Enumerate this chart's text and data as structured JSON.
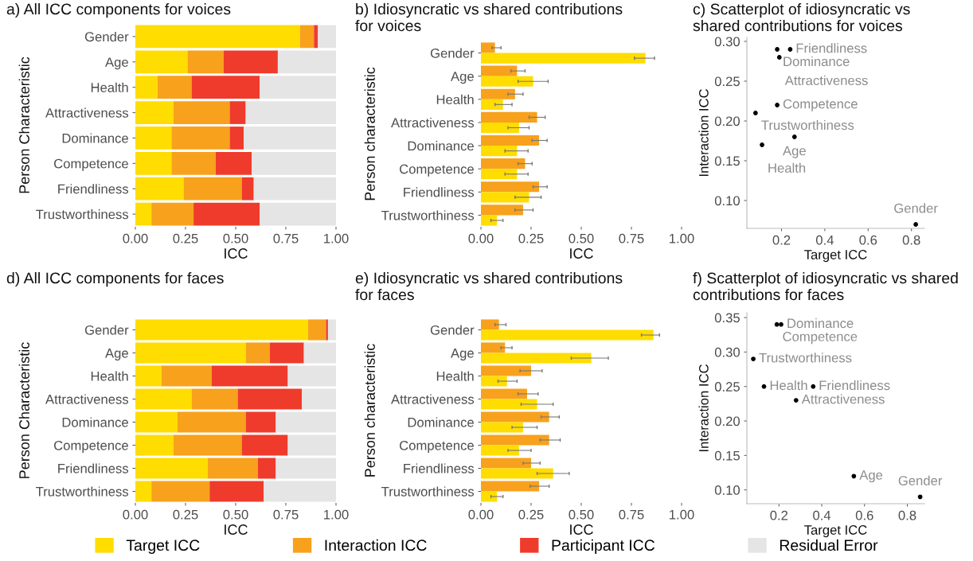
{
  "chart_data": [
    {
      "type": "bar",
      "orientation": "horizontal",
      "stacked": true,
      "title": "a) All ICC components for voices",
      "xlabel": "ICC",
      "ylabel": "Person Characteristic",
      "categories": [
        "Gender",
        "Age",
        "Health",
        "Attractiveness",
        "Dominance",
        "Competence",
        "Friendliness",
        "Trustworthiness"
      ],
      "series": [
        {
          "color": "#ffdd00",
          "values": [
            0.82,
            0.26,
            0.11,
            0.19,
            0.18,
            0.18,
            0.24,
            0.08
          ]
        },
        {
          "color": "#f8a11c",
          "values": [
            0.07,
            0.18,
            0.17,
            0.28,
            0.29,
            0.22,
            0.29,
            0.21
          ]
        },
        {
          "color": "#ef3b2c",
          "values": [
            0.02,
            0.27,
            0.34,
            0.08,
            0.07,
            0.18,
            0.06,
            0.33
          ]
        },
        {
          "color": "#e5e5e5",
          "values": [
            0.09,
            0.29,
            0.38,
            0.45,
            0.46,
            0.42,
            0.41,
            0.38
          ]
        }
      ],
      "xlim": [
        0,
        1
      ],
      "xticks": [
        {
          "value": 0,
          "label": "0.00"
        },
        {
          "value": 0.25,
          "label": "0.25"
        },
        {
          "value": 0.5,
          "label": "0.50"
        },
        {
          "value": 0.75,
          "label": "0.75"
        },
        {
          "value": 1,
          "label": "1.00"
        }
      ],
      "grid": false,
      "legend": false
    },
    {
      "type": "bar",
      "orientation": "horizontal",
      "title": "b) Idiosyncratic vs shared contributions\nfor voices",
      "xlabel": "ICC",
      "ylabel": "Person characteristic",
      "categories": [
        "Gender",
        "Age",
        "Health",
        "Attractiveness",
        "Dominance",
        "Competence",
        "Friendliness",
        "Trustworthiness"
      ],
      "series": [
        {
          "color": "#f8a11c",
          "values": [
            0.07,
            0.18,
            0.17,
            0.28,
            0.29,
            0.22,
            0.29,
            0.21
          ],
          "errors": [
            [
              0.055,
              0.1
            ],
            [
              0.15,
              0.22
            ],
            [
              0.135,
              0.21
            ],
            [
              0.24,
              0.32
            ],
            [
              0.255,
              0.33
            ],
            [
              0.185,
              0.255
            ],
            [
              0.26,
              0.33
            ],
            [
              0.17,
              0.26
            ]
          ]
        },
        {
          "color": "#ffdd00",
          "values": [
            0.82,
            0.26,
            0.11,
            0.19,
            0.18,
            0.18,
            0.24,
            0.08
          ],
          "errors": [
            [
              0.765,
              0.865
            ],
            [
              0.185,
              0.335
            ],
            [
              0.07,
              0.155
            ],
            [
              0.135,
              0.24
            ],
            [
              0.12,
              0.235
            ],
            [
              0.12,
              0.235
            ],
            [
              0.17,
              0.3
            ],
            [
              0.05,
              0.11
            ]
          ]
        }
      ],
      "xlim": [
        0,
        1
      ],
      "xticks": [
        {
          "value": 0,
          "label": "0.00"
        },
        {
          "value": 0.25,
          "label": "0.25"
        },
        {
          "value": 0.5,
          "label": "0.50"
        },
        {
          "value": 0.75,
          "label": "0.75"
        },
        {
          "value": 1,
          "label": "1.00"
        }
      ],
      "grid": false,
      "legend": false
    },
    {
      "type": "scatter",
      "title": "c) Scatterplot of idiosyncratic vs\nshared contributions for voices",
      "xlabel": "Target ICC",
      "ylabel": "Interaction ICC",
      "marker": "circle",
      "series": [
        {
          "color": "#000000",
          "x": [
            0.82,
            0.26,
            0.11,
            0.19,
            0.18,
            0.18,
            0.24,
            0.08
          ],
          "values": [
            0.07,
            0.18,
            0.17,
            0.28,
            0.29,
            0.22,
            0.29,
            0.21
          ]
        }
      ],
      "annotations": [
        {
          "text": "Gender",
          "x": 0.82,
          "y": 0.07
        },
        {
          "text": "Age",
          "x": 0.26,
          "y": 0.18
        },
        {
          "text": "Health",
          "x": 0.11,
          "y": 0.17
        },
        {
          "text": "Attractiveness",
          "x": 0.19,
          "y": 0.28
        },
        {
          "text": "Dominance",
          "x": 0.18,
          "y": 0.29
        },
        {
          "text": "Competence",
          "x": 0.18,
          "y": 0.22
        },
        {
          "text": "Friendliness",
          "x": 0.24,
          "y": 0.29
        },
        {
          "text": "Trustworthiness",
          "x": 0.08,
          "y": 0.21
        }
      ],
      "xlim": [
        0.04,
        0.86
      ],
      "ylim": [
        0.065,
        0.305
      ],
      "xticks": [
        0.2,
        0.4,
        0.6,
        0.8
      ],
      "yticks": [
        {
          "value": 0.1,
          "label": "0.10"
        },
        {
          "value": 0.15,
          "label": "0.15"
        },
        {
          "value": 0.2,
          "label": "0.20"
        },
        {
          "value": 0.25,
          "label": "0.25"
        },
        {
          "value": 0.3,
          "label": "0.30"
        }
      ],
      "grid": false,
      "legend": false
    },
    {
      "type": "bar",
      "orientation": "horizontal",
      "stacked": true,
      "title": "d) All ICC components for faces",
      "xlabel": "ICC",
      "ylabel": "Person Characteristic",
      "categories": [
        "Gender",
        "Age",
        "Health",
        "Attractiveness",
        "Dominance",
        "Competence",
        "Friendliness",
        "Trustworthiness"
      ],
      "series": [
        {
          "name": "Target ICC",
          "color": "#ffdd00",
          "values": [
            0.86,
            0.55,
            0.13,
            0.28,
            0.21,
            0.19,
            0.36,
            0.08
          ]
        },
        {
          "name": "Interaction ICC",
          "color": "#f8a11c",
          "values": [
            0.09,
            0.12,
            0.25,
            0.23,
            0.34,
            0.34,
            0.25,
            0.29
          ]
        },
        {
          "name": "Participant ICC",
          "color": "#ef3b2c",
          "values": [
            0.01,
            0.17,
            0.38,
            0.32,
            0.15,
            0.23,
            0.09,
            0.27
          ]
        },
        {
          "name": "Residual Error",
          "color": "#e5e5e5",
          "values": [
            0.04,
            0.16,
            0.24,
            0.17,
            0.3,
            0.24,
            0.3,
            0.36
          ]
        }
      ],
      "xlim": [
        0,
        1
      ],
      "xticks": [
        {
          "value": 0,
          "label": "0.00"
        },
        {
          "value": 0.25,
          "label": "0.25"
        },
        {
          "value": 0.5,
          "label": "0.50"
        },
        {
          "value": 0.75,
          "label": "0.75"
        },
        {
          "value": 1,
          "label": "1.00"
        }
      ],
      "grid": false,
      "legend": "bottom"
    },
    {
      "type": "bar",
      "orientation": "horizontal",
      "title": "e) Idiosyncratic vs shared contributions\nfor faces",
      "xlabel": "ICC",
      "ylabel": "Person characteristic",
      "categories": [
        "Gender",
        "Age",
        "Health",
        "Attractiveness",
        "Dominance",
        "Competence",
        "Friendliness",
        "Trustworthiness"
      ],
      "series": [
        {
          "color": "#f8a11c",
          "values": [
            0.09,
            0.12,
            0.25,
            0.23,
            0.34,
            0.34,
            0.25,
            0.29
          ],
          "errors": [
            [
              0.07,
              0.125
            ],
            [
              0.1,
              0.155
            ],
            [
              0.195,
              0.305
            ],
            [
              0.185,
              0.285
            ],
            [
              0.3,
              0.39
            ],
            [
              0.295,
              0.395
            ],
            [
              0.21,
              0.295
            ],
            [
              0.245,
              0.34
            ]
          ]
        },
        {
          "color": "#ffdd00",
          "values": [
            0.86,
            0.55,
            0.13,
            0.28,
            0.21,
            0.19,
            0.36,
            0.08
          ],
          "errors": [
            [
              0.8,
              0.89
            ],
            [
              0.45,
              0.635
            ],
            [
              0.085,
              0.18
            ],
            [
              0.2,
              0.36
            ],
            [
              0.155,
              0.28
            ],
            [
              0.135,
              0.25
            ],
            [
              0.28,
              0.44
            ],
            [
              0.05,
              0.11
            ]
          ]
        }
      ],
      "xlim": [
        0,
        1
      ],
      "xticks": [
        {
          "value": 0,
          "label": "0.00"
        },
        {
          "value": 0.25,
          "label": "0.25"
        },
        {
          "value": 0.5,
          "label": "0.50"
        },
        {
          "value": 0.75,
          "label": "0.75"
        },
        {
          "value": 1,
          "label": "1.00"
        }
      ],
      "grid": false,
      "legend": false
    },
    {
      "type": "scatter",
      "title": "f) Scatterplot of idiosyncratic vs shared\ncontributions for faces",
      "xlabel": "Target ICC",
      "ylabel": "Interaction ICC",
      "marker": "circle",
      "series": [
        {
          "color": "#000000",
          "x": [
            0.86,
            0.55,
            0.13,
            0.28,
            0.21,
            0.19,
            0.36,
            0.08
          ],
          "values": [
            0.09,
            0.12,
            0.25,
            0.23,
            0.34,
            0.34,
            0.25,
            0.29
          ]
        }
      ],
      "annotations": [
        {
          "text": "Gender",
          "x": 0.86,
          "y": 0.09
        },
        {
          "text": "Age",
          "x": 0.55,
          "y": 0.12
        },
        {
          "text": "Health",
          "x": 0.13,
          "y": 0.25
        },
        {
          "text": "Attractiveness",
          "x": 0.28,
          "y": 0.23
        },
        {
          "text": "Dominance",
          "x": 0.21,
          "y": 0.34
        },
        {
          "text": "Competence",
          "x": 0.19,
          "y": 0.34
        },
        {
          "text": "Friendliness",
          "x": 0.36,
          "y": 0.25
        },
        {
          "text": "Trustworthiness",
          "x": 0.08,
          "y": 0.29
        }
      ],
      "xlim": [
        0.05,
        0.88
      ],
      "ylim": [
        0.08,
        0.357
      ],
      "xticks": [
        0.2,
        0.4,
        0.6,
        0.8
      ],
      "yticks": [
        {
          "value": 0.1,
          "label": "0.10"
        },
        {
          "value": 0.15,
          "label": "0.15"
        },
        {
          "value": 0.2,
          "label": "0.20"
        },
        {
          "value": 0.25,
          "label": "0.25"
        },
        {
          "value": 0.3,
          "label": "0.30"
        },
        {
          "value": 0.35,
          "label": "0.35"
        }
      ],
      "grid": false,
      "legend": false
    }
  ]
}
